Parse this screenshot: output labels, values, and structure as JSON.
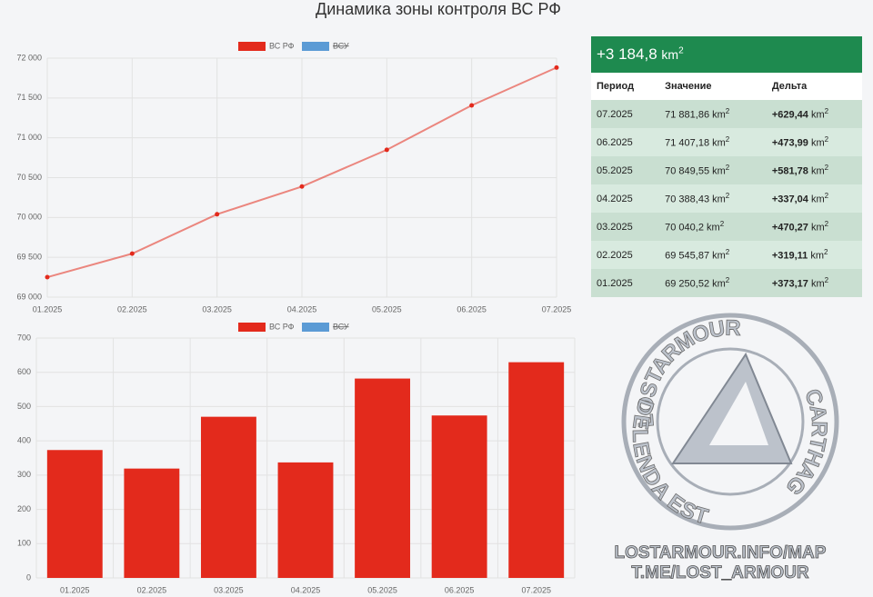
{
  "title": "Динамика зоны контроля ВС РФ",
  "chart_data": [
    {
      "type": "line",
      "categories": [
        "01.2025",
        "02.2025",
        "03.2025",
        "04.2025",
        "05.2025",
        "06.2025",
        "07.2025"
      ],
      "series": [
        {
          "name": "ВС РФ",
          "color": "#e32a1c",
          "values": [
            69250.52,
            69545.87,
            70040.2,
            70388.43,
            70849.55,
            71407.18,
            71881.86
          ]
        },
        {
          "name": "ВСУ",
          "color": "#5b9bd5",
          "hidden": true,
          "values": [
            null,
            null,
            null,
            null,
            null,
            null,
            null
          ]
        }
      ],
      "ylim": [
        69000,
        72000
      ],
      "yticks": [
        {
          "value": 69000,
          "label": "69 000"
        },
        {
          "value": 69500,
          "label": "69 500"
        },
        {
          "value": 70000,
          "label": "70 000"
        },
        {
          "value": 70500,
          "label": "70 500"
        },
        {
          "value": 71000,
          "label": "71 000"
        },
        {
          "value": 71500,
          "label": "71 500"
        },
        {
          "value": 72000,
          "label": "72 000"
        }
      ],
      "grid": true
    },
    {
      "type": "bar",
      "categories": [
        "01.2025",
        "02.2025",
        "03.2025",
        "04.2025",
        "05.2025",
        "06.2025",
        "07.2025"
      ],
      "series": [
        {
          "name": "ВС РФ",
          "color": "#e32a1c",
          "values": [
            373.17,
            319.11,
            470.27,
            337.04,
            581.78,
            473.99,
            629.44
          ]
        },
        {
          "name": "ВСУ",
          "color": "#5b9bd5",
          "hidden": true,
          "values": [
            null,
            null,
            null,
            null,
            null,
            null,
            null
          ]
        }
      ],
      "ylim": [
        0,
        700
      ],
      "yticks": [
        0,
        100,
        200,
        300,
        400,
        500,
        600,
        700
      ],
      "grid": true
    }
  ],
  "table": {
    "total": "+3 184,8",
    "unit": "km",
    "unit_exp": "2",
    "columns": [
      "Период",
      "Значение",
      "Дельта"
    ],
    "rows": [
      [
        "07.2025",
        "71 881,86",
        "+629,44"
      ],
      [
        "06.2025",
        "71 407,18",
        "+473,99"
      ],
      [
        "05.2025",
        "70 849,55",
        "+581,78"
      ],
      [
        "04.2025",
        "70 388,43",
        "+337,04"
      ],
      [
        "03.2025",
        "70 040,2",
        "+470,27"
      ],
      [
        "02.2025",
        "69 545,87",
        "+319,11"
      ],
      [
        "01.2025",
        "69 250,52",
        "+373,17"
      ]
    ]
  },
  "watermark": {
    "ring_top": "LOSTARMOUR",
    "ring_right": "CARTHAGO",
    "ring_left": "DELENDA EST",
    "url": "LOSTARMOUR.INFO/MAP",
    "telegram": "T.ME/LOST_ARMOUR"
  }
}
